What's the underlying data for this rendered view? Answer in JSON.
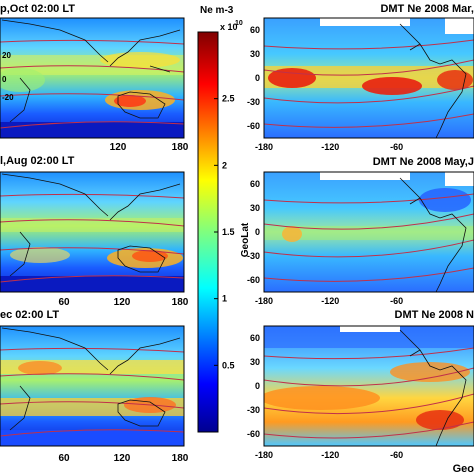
{
  "chart_data": {
    "type": "heatmap",
    "panels": [
      {
        "id": "left-top",
        "title": "p,Oct 02:00 LT",
        "x_ticks": [],
        "y_ticks": [],
        "inner_labels": [
          "20",
          "0",
          "-20"
        ]
      },
      {
        "id": "left-mid",
        "title": "l,Aug 02:00 LT",
        "x_ticks": [],
        "y_ticks": []
      },
      {
        "id": "left-bot",
        "title": "ec 02:00 LT",
        "x_ticks": [
          "60",
          "120",
          "180"
        ],
        "y_ticks": []
      },
      {
        "id": "right-top",
        "title": "DMT Ne 2008 Mar,",
        "x_ticks": [
          "-180",
          "-120",
          "-60"
        ],
        "y_ticks": [
          "60",
          "30",
          "0",
          "-30",
          "-60"
        ]
      },
      {
        "id": "right-mid",
        "title": "DMT Ne 2008 May,J",
        "x_ticks": [
          "-180",
          "-120",
          "-60"
        ],
        "y_ticks": [
          "60",
          "30",
          "0",
          "-30",
          "-60"
        ]
      },
      {
        "id": "right-bot",
        "title": "DMT Ne 2008 N",
        "x_ticks": [
          "-180",
          "-120",
          "-60"
        ],
        "y_ticks": [
          "60",
          "30",
          "0",
          "-30",
          "-60"
        ],
        "xlabel_partial": "Geo"
      }
    ],
    "left_x_ticks_top": [
      "120",
      "180"
    ],
    "left_x_ticks_mid": [
      "60",
      "120",
      "180"
    ],
    "colorbar": {
      "title": "Ne m-3",
      "scale_label": "x 10",
      "scale_exp": "10",
      "ticks": [
        "2.5",
        "2",
        "1.5",
        "1",
        "0.5"
      ],
      "tick_values": [
        2.5,
        2,
        1.5,
        1,
        0.5
      ],
      "range": [
        0,
        3.0
      ],
      "colormap": "jet"
    },
    "ylabel": "GeoLat"
  }
}
